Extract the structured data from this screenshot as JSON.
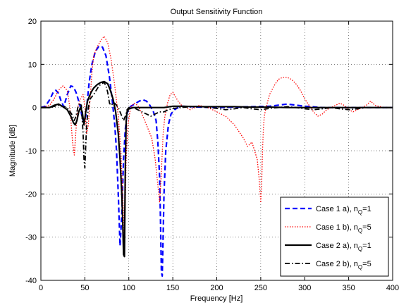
{
  "chart_data": {
    "type": "line",
    "title": "Output Sensitivity Function",
    "xlabel": "Frequency [Hz]",
    "ylabel": "Magnitude [dB]",
    "xlim": [
      0,
      400
    ],
    "ylim": [
      -40,
      20
    ],
    "xticks": [
      0,
      50,
      100,
      150,
      200,
      250,
      300,
      350,
      400
    ],
    "yticks": [
      -40,
      -30,
      -20,
      -10,
      0,
      10,
      20
    ],
    "grid": true,
    "legend_position": "bottom-right",
    "series": [
      {
        "name": "Case 1 a), n",
        "name_sub": "Q",
        "name_suffix": "=1",
        "color": "#0000ff",
        "style": "dashed",
        "x": [
          0,
          5,
          10,
          14,
          17,
          20,
          23,
          26,
          30,
          34,
          37,
          40,
          43,
          45,
          47,
          49,
          51,
          53,
          55,
          58,
          62,
          66,
          70,
          74,
          78,
          81,
          84,
          86,
          88,
          90,
          92,
          94,
          96,
          98,
          100,
          104,
          108,
          112,
          116,
          120,
          124,
          128,
          131,
          133,
          135,
          136,
          137,
          138,
          139,
          140,
          142,
          145,
          148,
          152,
          156,
          160,
          170,
          180,
          200,
          220,
          240,
          260,
          280,
          300,
          320,
          340,
          360,
          380,
          400
        ],
        "y": [
          0,
          0.3,
          1.8,
          3.5,
          4.0,
          3.3,
          1.5,
          0.2,
          3.0,
          5.0,
          4.8,
          3.5,
          1.5,
          0,
          -2.5,
          -3.5,
          -2.0,
          2.0,
          6.0,
          10.0,
          13.0,
          14.2,
          14.0,
          12.0,
          7.0,
          2.0,
          -4.0,
          -10.0,
          -20.0,
          -32.0,
          -25.0,
          -12.0,
          -5.0,
          -1.5,
          0,
          0.5,
          1.0,
          1.5,
          1.8,
          1.5,
          0.5,
          -1.0,
          -3.0,
          -8.0,
          -16.0,
          -26.0,
          -38.0,
          -39.0,
          -30.0,
          -20.0,
          -10.0,
          -4.0,
          -1.5,
          -0.5,
          0,
          0.3,
          0.2,
          0.1,
          0,
          0.1,
          0.2,
          0.3,
          0.8,
          0.3,
          0,
          0,
          0,
          0,
          0
        ]
      },
      {
        "name": "Case 1 b), n",
        "name_sub": "Q",
        "name_suffix": "=5",
        "color": "#ff0000",
        "style": "dotted",
        "x": [
          0,
          10,
          15,
          20,
          25,
          30,
          33,
          36,
          38,
          40,
          42,
          45,
          48,
          50,
          52,
          54,
          56,
          58,
          60,
          64,
          68,
          72,
          76,
          80,
          84,
          88,
          91,
          93,
          95,
          96,
          97,
          99,
          102,
          106,
          110,
          114,
          118,
          122,
          126,
          130,
          133,
          135,
          137,
          139,
          141,
          144,
          147,
          150,
          153,
          156,
          160,
          165,
          170,
          175,
          180,
          190,
          200,
          210,
          220,
          230,
          235,
          240,
          243,
          246,
          248,
          250,
          251,
          252,
          253,
          254,
          256,
          260,
          265,
          270,
          275,
          280,
          285,
          290,
          295,
          300,
          305,
          310,
          315,
          320,
          325,
          330,
          335,
          340,
          345,
          350,
          355,
          360,
          365,
          370,
          375,
          380,
          390,
          400
        ],
        "y": [
          0,
          0.5,
          2.0,
          4.0,
          5.0,
          4.0,
          0,
          -8.0,
          -11.0,
          -5.0,
          0,
          2.0,
          3.0,
          0,
          -6.0,
          -4.0,
          2.0,
          8.0,
          12.0,
          14.0,
          15.5,
          16.5,
          15.0,
          11.0,
          5.0,
          -2.0,
          -10.0,
          -20.0,
          -30.0,
          -22.0,
          -12.0,
          -4.0,
          0,
          1.0,
          0.5,
          -1.0,
          -3.0,
          -5.0,
          -7.0,
          -12.0,
          -18.0,
          -22.0,
          -15.0,
          -6.0,
          -2.0,
          1.0,
          3.0,
          3.5,
          2.5,
          1.5,
          0.5,
          0,
          -0.5,
          0,
          0.5,
          0,
          -1.0,
          -2.0,
          -4.0,
          -7.0,
          -9.0,
          -8.0,
          -10.0,
          -12.0,
          -16.0,
          -22.0,
          -18.0,
          -10.0,
          -5.0,
          -2.0,
          0,
          3.0,
          5.0,
          6.5,
          7.0,
          7.0,
          6.5,
          5.5,
          4.0,
          2.0,
          0.5,
          -1.0,
          -2.0,
          -1.5,
          -0.5,
          0,
          0.5,
          1.0,
          0.5,
          -0.5,
          -1.0,
          -0.5,
          0,
          0.5,
          1.5,
          0.5,
          0,
          0
        ]
      },
      {
        "name": "Case 2 a), n",
        "name_sub": "Q",
        "name_suffix": "=1",
        "color": "#000000",
        "style": "solid",
        "x": [
          0,
          10,
          15,
          20,
          25,
          30,
          34,
          37,
          39,
          41,
          43,
          45,
          47,
          49,
          51,
          53,
          55,
          57,
          60,
          64,
          68,
          72,
          76,
          79,
          82,
          85,
          88,
          90,
          92,
          93,
          94,
          95,
          96,
          97,
          98,
          100,
          105,
          110,
          120,
          130,
          140,
          150,
          160,
          180,
          200,
          220,
          240,
          260,
          280,
          300,
          320,
          340,
          360,
          380,
          400
        ],
        "y": [
          0,
          0,
          0.5,
          0.8,
          0.2,
          -0.5,
          -2.0,
          -3.5,
          -4.0,
          -3.0,
          -1.0,
          0,
          -1.0,
          -4.0,
          -1.0,
          1.5,
          2.5,
          3.5,
          4.5,
          5.3,
          5.8,
          6.0,
          5.5,
          4.0,
          2.0,
          -1.0,
          -6.0,
          -12.0,
          -20.0,
          -26.0,
          -34.0,
          -34.5,
          -14.0,
          -3.0,
          -1.0,
          -0.3,
          0,
          0,
          0,
          0,
          0,
          0.3,
          0.3,
          0.2,
          0.2,
          0.2,
          0.1,
          0.1,
          0,
          0,
          0,
          0,
          0,
          0,
          0
        ]
      },
      {
        "name": "Case 2 b), n",
        "name_sub": "Q",
        "name_suffix": "=5",
        "color": "#000000",
        "style": "dashdot",
        "x": [
          0,
          10,
          20,
          30,
          35,
          38,
          40,
          42,
          44,
          46,
          48,
          49,
          50,
          51,
          52,
          54,
          56,
          58,
          60,
          63,
          66,
          69,
          72,
          74,
          76,
          78,
          80,
          82,
          84,
          86,
          88,
          90,
          92,
          94,
          96,
          98,
          100,
          105,
          110,
          115,
          120,
          125,
          130,
          135,
          140,
          145,
          150,
          160,
          170,
          180,
          190,
          200,
          210,
          220,
          230,
          240,
          250,
          260,
          270,
          280,
          290,
          300,
          310,
          320,
          330,
          340,
          350,
          360,
          370,
          380,
          390,
          400
        ],
        "y": [
          0,
          0,
          0.5,
          0,
          -1.5,
          -3.0,
          -2.0,
          0,
          1.0,
          0.5,
          -6.0,
          -12.0,
          -14.0,
          -9.0,
          -4.0,
          0,
          2.0,
          2.5,
          3.0,
          4.0,
          5.0,
          5.5,
          5.8,
          5.0,
          3.5,
          1.0,
          0.5,
          1.0,
          1.0,
          0.5,
          0,
          -1.0,
          -2.0,
          -3.0,
          -2.0,
          -0.5,
          0,
          0,
          -0.5,
          -1.0,
          -1.5,
          -2.0,
          -1.5,
          -1.0,
          -1.0,
          -0.5,
          -0.2,
          0,
          0.2,
          0.3,
          0,
          -0.2,
          -0.5,
          -0.3,
          0,
          -0.3,
          -0.5,
          -0.2,
          0,
          0.2,
          0,
          -0.3,
          -0.5,
          -0.3,
          0,
          -0.3,
          -0.5,
          -0.3,
          0,
          0,
          0,
          0
        ]
      }
    ]
  }
}
